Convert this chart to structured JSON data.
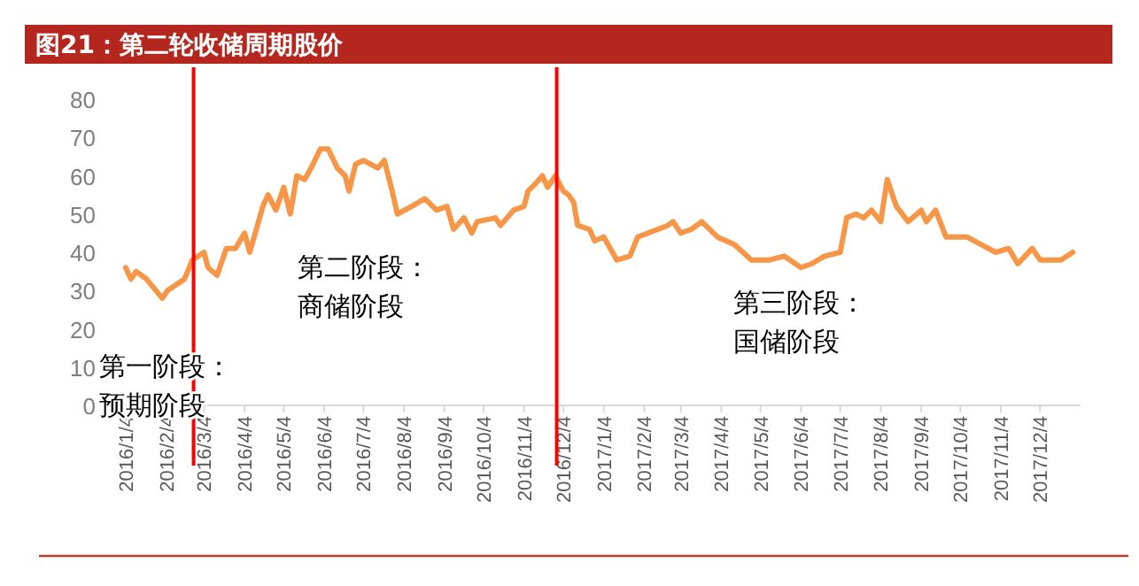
{
  "chart_data": {
    "type": "line",
    "title": "图21：第二轮收储周期股价",
    "x": [
      "2016-01-04",
      "2016-01-08",
      "2016-01-12",
      "2016-01-20",
      "2016-02-01",
      "2016-02-05",
      "2016-02-18",
      "2016-02-24",
      "2016-03-04",
      "2016-03-07",
      "2016-03-14",
      "2016-03-21",
      "2016-03-28",
      "2016-04-04",
      "2016-04-08",
      "2016-04-18",
      "2016-04-22",
      "2016-04-28",
      "2016-05-04",
      "2016-05-09",
      "2016-05-14",
      "2016-05-20",
      "2016-05-25",
      "2016-06-01",
      "2016-06-07",
      "2016-06-14",
      "2016-06-20",
      "2016-06-23",
      "2016-06-28",
      "2016-07-04",
      "2016-07-15",
      "2016-07-20",
      "2016-07-26",
      "2016-07-30",
      "2016-08-10",
      "2016-08-20",
      "2016-08-29",
      "2016-09-06",
      "2016-09-11",
      "2016-09-19",
      "2016-09-25",
      "2016-09-29",
      "2016-10-13",
      "2016-10-17",
      "2016-10-27",
      "2016-11-04",
      "2016-11-07",
      "2016-11-13",
      "2016-11-18",
      "2016-11-22",
      "2016-11-28",
      "2016-12-04",
      "2016-12-08",
      "2016-12-12",
      "2016-12-15",
      "2016-12-24",
      "2016-12-28",
      "2017-01-04",
      "2017-01-14",
      "2017-01-24",
      "2017-01-30",
      "2017-02-22",
      "2017-02-26",
      "2017-03-04",
      "2017-03-12",
      "2017-03-20",
      "2017-04-01",
      "2017-04-14",
      "2017-04-27",
      "2017-05-11",
      "2017-05-22",
      "2017-06-04",
      "2017-06-12",
      "2017-06-22",
      "2017-07-04",
      "2017-07-09",
      "2017-07-16",
      "2017-07-22",
      "2017-07-28",
      "2017-08-04",
      "2017-08-09",
      "2017-08-16",
      "2017-08-25",
      "2017-09-04",
      "2017-09-08",
      "2017-09-15",
      "2017-09-23",
      "2017-10-09",
      "2017-10-20",
      "2017-10-31",
      "2017-11-10",
      "2017-11-17",
      "2017-11-28",
      "2017-12-04",
      "2017-12-20",
      "2017-12-29"
    ],
    "series": [
      {
        "color": "#f79646",
        "values": [
          36,
          33,
          35,
          33,
          28,
          30,
          33,
          38,
          40,
          36,
          34,
          41,
          41,
          45,
          40,
          52,
          55,
          51,
          57,
          50,
          60,
          59,
          62,
          67,
          67,
          62,
          60,
          56,
          63,
          64,
          62,
          64,
          56,
          50,
          52,
          54,
          51,
          52,
          46,
          49,
          45,
          48,
          49,
          47,
          51,
          52,
          56,
          58,
          60,
          57,
          60,
          56,
          55,
          53,
          47,
          46,
          43,
          44,
          38,
          39,
          44,
          47,
          48,
          45,
          46,
          48,
          44,
          42,
          38,
          38,
          39,
          36,
          37,
          39,
          40,
          49,
          50,
          49,
          51,
          48,
          59,
          52,
          48,
          51,
          48,
          51,
          44,
          44,
          42,
          40,
          41,
          37,
          41,
          38,
          38,
          40
        ]
      }
    ],
    "xlim": [
      "2015-12-31",
      "2018-01-04"
    ],
    "xticks": [
      {
        "value": "2016-01-04",
        "label": "2016/1/4"
      },
      {
        "value": "2016-02-04",
        "label": "2016/2/4"
      },
      {
        "value": "2016-03-04",
        "label": "2016/3/4"
      },
      {
        "value": "2016-04-04",
        "label": "2016/4/4"
      },
      {
        "value": "2016-05-04",
        "label": "2016/5/4"
      },
      {
        "value": "2016-06-04",
        "label": "2016/6/4"
      },
      {
        "value": "2016-07-04",
        "label": "2016/7/4"
      },
      {
        "value": "2016-08-04",
        "label": "2016/8/4"
      },
      {
        "value": "2016-09-04",
        "label": "2016/9/4"
      },
      {
        "value": "2016-10-04",
        "label": "2016/10/4"
      },
      {
        "value": "2016-11-04",
        "label": "2016/11/4"
      },
      {
        "value": "2016-12-04",
        "label": "2016/12/4"
      },
      {
        "value": "2017-01-04",
        "label": "2017/1/4"
      },
      {
        "value": "2017-02-04",
        "label": "2017/2/4"
      },
      {
        "value": "2017-03-04",
        "label": "2017/3/4"
      },
      {
        "value": "2017-04-04",
        "label": "2017/4/4"
      },
      {
        "value": "2017-05-04",
        "label": "2017/5/4"
      },
      {
        "value": "2017-06-04",
        "label": "2017/6/4"
      },
      {
        "value": "2017-07-04",
        "label": "2017/7/4"
      },
      {
        "value": "2017-08-04",
        "label": "2017/8/4"
      },
      {
        "value": "2017-09-04",
        "label": "2017/9/4"
      },
      {
        "value": "2017-10-04",
        "label": "2017/10/4"
      },
      {
        "value": "2017-11-04",
        "label": "2017/11/4"
      },
      {
        "value": "2017-12-04",
        "label": "2017/12/4"
      }
    ],
    "ylim": [
      0,
      80
    ],
    "yticks": [
      0,
      10,
      20,
      30,
      40,
      50,
      60,
      70,
      80
    ],
    "grid": false,
    "marker": "none",
    "line_style": "solid",
    "ref_lines": [
      {
        "axis": "x",
        "value": "2016-02-25",
        "color": "#ff0000"
      },
      {
        "axis": "x",
        "value": "2016-11-29",
        "color": "#ff0000"
      }
    ],
    "annotations": [
      "第一阶段：",
      "预期阶段",
      "第二阶段：",
      "商储阶段",
      "第三阶段：",
      "国储阶段"
    ]
  }
}
